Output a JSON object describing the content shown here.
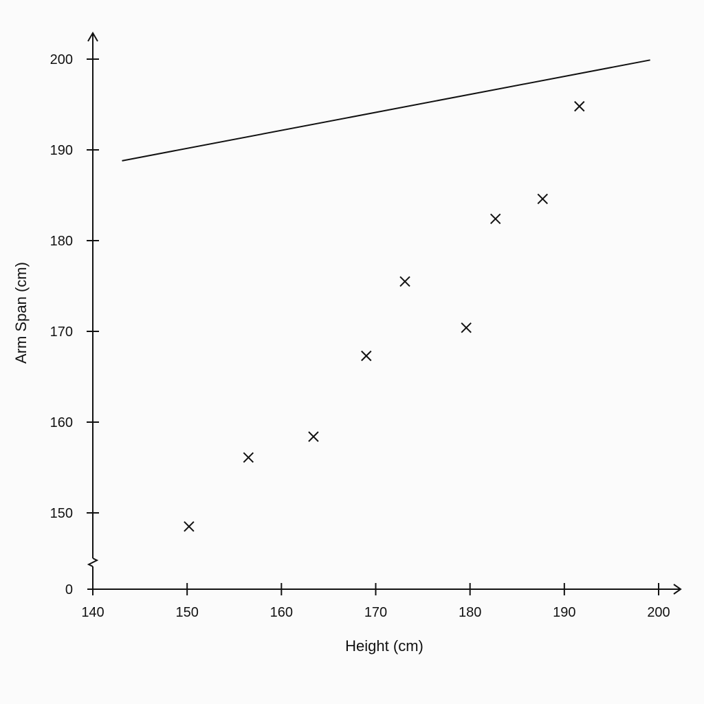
{
  "chart_data": {
    "type": "scatter",
    "title": "",
    "xlabel": "Height (cm)",
    "ylabel": "Arm Span (cm)",
    "xlim": [
      140,
      200
    ],
    "ylim": [
      0,
      200
    ],
    "y_axis_break": [
      0,
      150
    ],
    "grid": false,
    "legend": "none",
    "x_ticks": [
      {
        "value": 140,
        "label": "140"
      },
      {
        "value": 150,
        "label": "150"
      },
      {
        "value": 160,
        "label": "160"
      },
      {
        "value": 170,
        "label": "170"
      },
      {
        "value": 180,
        "label": "180"
      },
      {
        "value": 190,
        "label": "190"
      },
      {
        "value": 200,
        "label": "200"
      }
    ],
    "y_ticks": [
      {
        "value": 0,
        "label": "0"
      },
      {
        "value": 150,
        "label": "150"
      },
      {
        "value": 160,
        "label": "160"
      },
      {
        "value": 170,
        "label": "170"
      },
      {
        "value": 180,
        "label": "180"
      },
      {
        "value": 190,
        "label": "190"
      },
      {
        "value": 200,
        "label": "200"
      }
    ],
    "series": [
      {
        "marker": "x",
        "color": "#111111",
        "points": [
          {
            "x": 150.2,
            "y": 148.5
          },
          {
            "x": 156.5,
            "y": 156.1
          },
          {
            "x": 163.4,
            "y": 158.4
          },
          {
            "x": 169.0,
            "y": 167.3
          },
          {
            "x": 173.1,
            "y": 175.5
          },
          {
            "x": 179.6,
            "y": 170.4
          },
          {
            "x": 182.7,
            "y": 182.4
          },
          {
            "x": 187.7,
            "y": 184.6
          },
          {
            "x": 191.6,
            "y": 194.8
          }
        ]
      }
    ],
    "lines": [
      {
        "points": [
          {
            "x": 143.1,
            "y": 188.8
          },
          {
            "x": 199.1,
            "y": 199.9
          }
        ],
        "color": "#111111"
      }
    ]
  }
}
